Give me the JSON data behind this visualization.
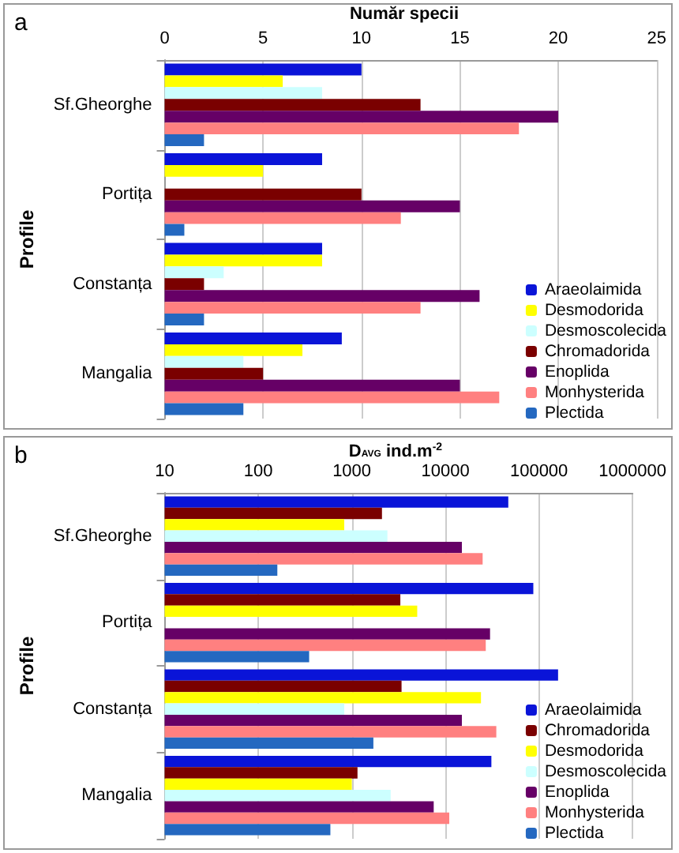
{
  "chart_data": [
    {
      "type": "bar",
      "title": "a",
      "xlabel": "Număr specii",
      "ylabel": "Profile",
      "orientation": "horizontal",
      "categories": [
        "Sf.Gheorghe",
        "Portița",
        "Constanța",
        "Mangalia"
      ],
      "series": [
        {
          "name": "Araeolaimida",
          "color": "#0a14d8",
          "values": [
            10,
            8,
            8,
            9
          ]
        },
        {
          "name": "Desmodorida",
          "color": "#ffff00",
          "values": [
            6,
            5,
            8,
            7
          ]
        },
        {
          "name": "Desmoscolecida",
          "color": "#ccffff",
          "values": [
            8,
            null,
            3,
            4
          ]
        },
        {
          "name": "Chromadorida",
          "color": "#7a0000",
          "values": [
            13,
            10,
            2,
            5
          ]
        },
        {
          "name": "Enoplida",
          "color": "#660066",
          "values": [
            20,
            15,
            16,
            15
          ]
        },
        {
          "name": "Monhysterida",
          "color": "#ff8080",
          "values": [
            18,
            12,
            13,
            17
          ]
        },
        {
          "name": "Plectida",
          "color": "#2468c0",
          "values": [
            2,
            1,
            2,
            4
          ]
        }
      ],
      "xlim": [
        0,
        25
      ],
      "xticks": [
        0,
        5,
        10,
        15,
        20,
        25
      ],
      "grid": "x",
      "legend": "bottom right"
    },
    {
      "type": "bar",
      "title": "b",
      "xlabel": "D$_{AVG}$ ind.m$^{-2}$",
      "ylabel": "Profile",
      "orientation": "horizontal",
      "log": "x",
      "categories": [
        "Sf.Gheorghe",
        "Portița",
        "Constanța",
        "Mangalia"
      ],
      "series": [
        {
          "name": "Araeolaimida",
          "color": "#0a14d8",
          "values": [
            47000,
            87000,
            160000,
            31000
          ]
        },
        {
          "name": "Chromadorida",
          "color": "#7a0000",
          "values": [
            2100,
            3300,
            3400,
            1150
          ]
        },
        {
          "name": "Desmodorida",
          "color": "#ffff00",
          "values": [
            830,
            5000,
            24000,
            1000
          ]
        },
        {
          "name": "Desmoscolecida",
          "color": "#ccffff",
          "values": [
            2400,
            null,
            830,
            2600
          ]
        },
        {
          "name": "Enoplida",
          "color": "#660066",
          "values": [
            15000,
            30000,
            15000,
            7500
          ]
        },
        {
          "name": "Monhysterida",
          "color": "#ff8080",
          "values": [
            25000,
            27000,
            35000,
            11000
          ]
        },
        {
          "name": "Plectida",
          "color": "#2468c0",
          "values": [
            160,
            350,
            1700,
            590
          ]
        }
      ],
      "xlim": [
        10,
        1000000
      ],
      "xticks": [
        10,
        100,
        1000,
        10000,
        100000,
        1000000
      ],
      "grid": "x",
      "legend": "bottom right"
    }
  ]
}
